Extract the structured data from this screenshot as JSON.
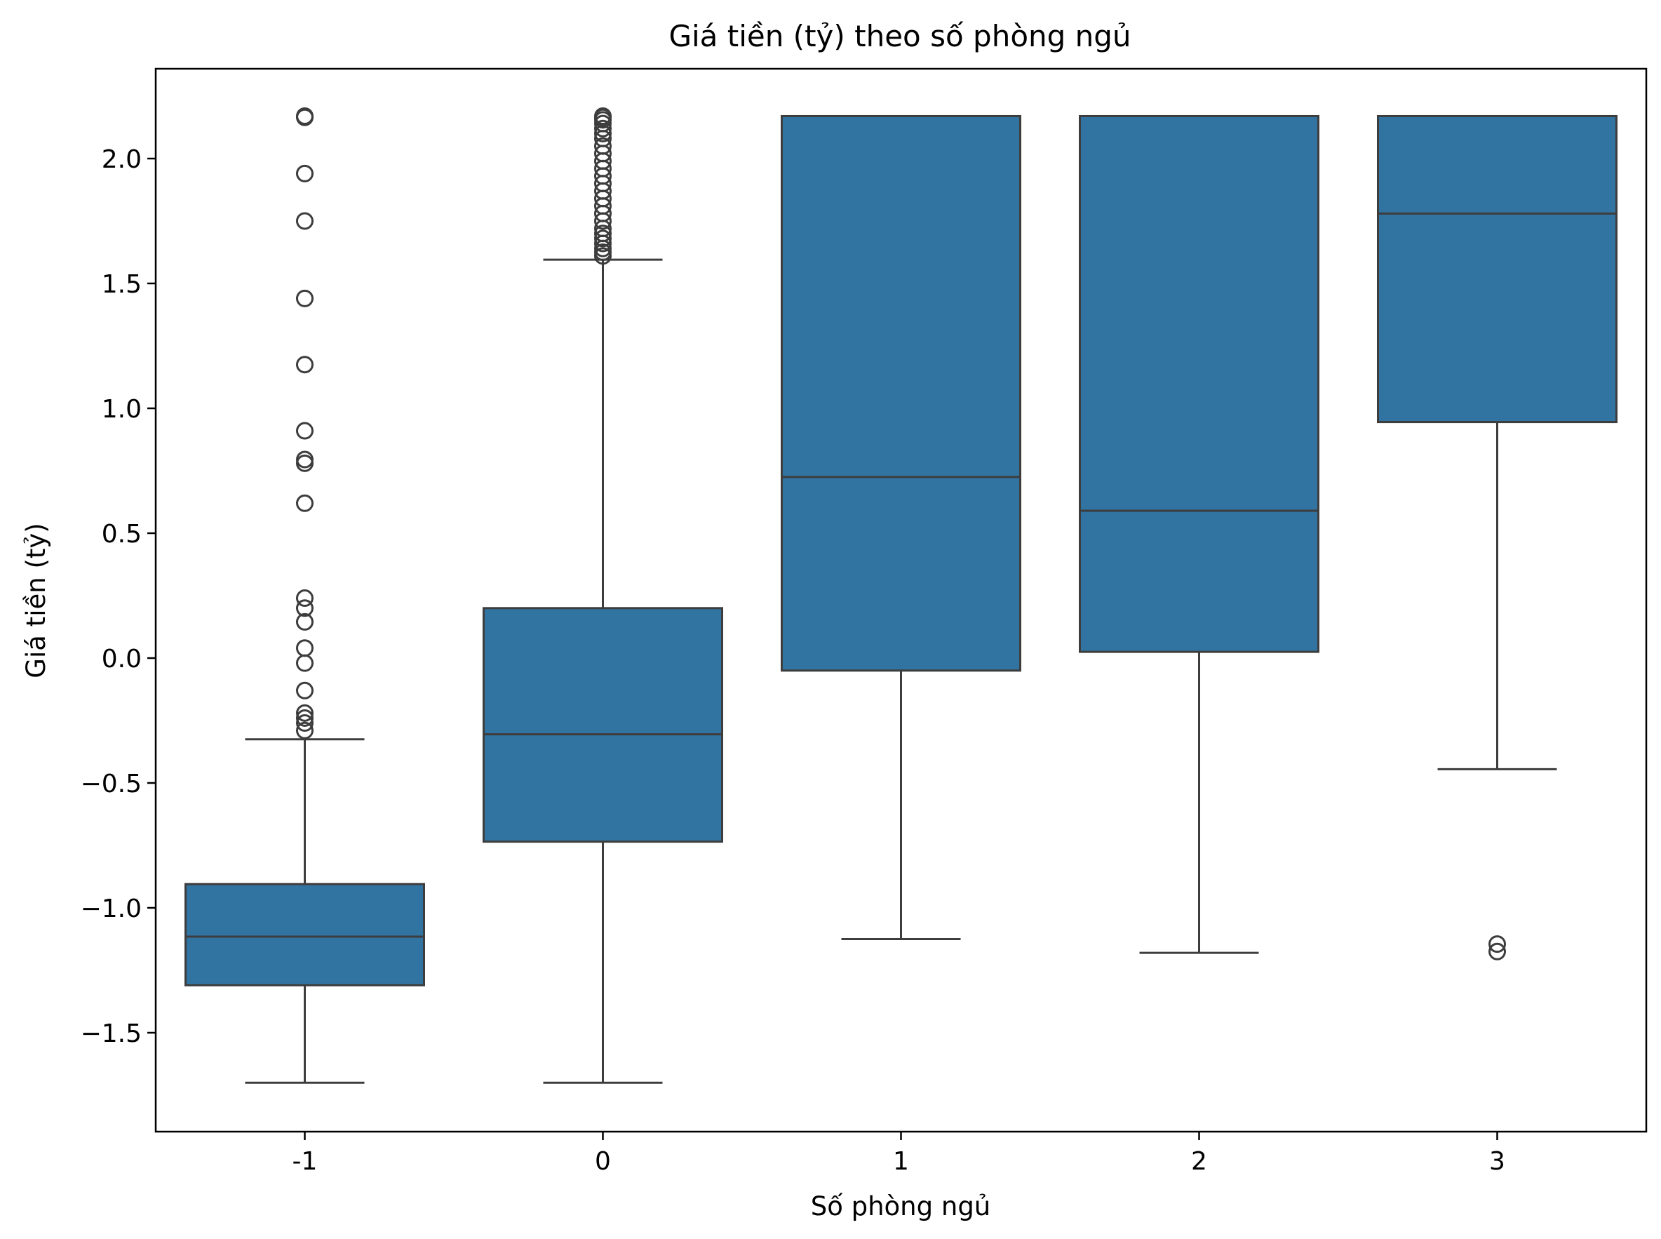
{
  "chart_data": {
    "type": "box",
    "title": "Giá tiền (tỷ) theo số phòng ngủ",
    "xlabel": "Số phòng ngủ",
    "ylabel": "Giá tiền (tỷ)",
    "categories": [
      "-1",
      "0",
      "1",
      "2",
      "3"
    ],
    "ylim": [
      -1.9,
      2.35
    ],
    "yticks": [
      -1.5,
      -1.0,
      -0.5,
      0.0,
      0.5,
      1.0,
      1.5,
      2.0
    ],
    "ytick_labels": [
      "−1.5",
      "−1.0",
      "−0.5",
      "0.0",
      "0.5",
      "1.0",
      "1.5",
      "2.0"
    ],
    "box_color": "#3274a1",
    "line_color": "#3d3d3d",
    "boxes": [
      {
        "category": "-1",
        "whisker_low": -1.7,
        "q1": -1.31,
        "median": -1.115,
        "q3": -0.905,
        "whisker_high": -0.325,
        "outliers": [
          2.17,
          2.165,
          1.94,
          1.75,
          1.44,
          1.175,
          0.91,
          0.795,
          0.78,
          0.62,
          0.24,
          0.2,
          0.145,
          0.04,
          -0.02,
          -0.13,
          -0.22,
          -0.24,
          -0.26,
          -0.29
        ]
      },
      {
        "category": "0",
        "whisker_low": -1.7,
        "q1": -0.735,
        "median": -0.305,
        "q3": 0.2,
        "whisker_high": 1.595,
        "outliers": [
          2.17,
          2.165,
          2.155,
          2.14,
          2.12,
          2.1,
          2.08,
          2.05,
          2.02,
          1.99,
          1.96,
          1.93,
          1.9,
          1.87,
          1.84,
          1.81,
          1.78,
          1.75,
          1.72,
          1.7,
          1.68,
          1.66,
          1.64,
          1.625,
          1.61
        ]
      },
      {
        "category": "1",
        "whisker_low": -1.125,
        "q1": -0.05,
        "median": 0.725,
        "q3": 2.17,
        "whisker_high": 2.17,
        "outliers": []
      },
      {
        "category": "2",
        "whisker_low": -1.18,
        "q1": 0.025,
        "median": 0.59,
        "q3": 2.17,
        "whisker_high": 2.17,
        "outliers": []
      },
      {
        "category": "3",
        "whisker_low": -0.445,
        "q1": 0.945,
        "median": 1.78,
        "q3": 2.17,
        "whisker_high": 2.17,
        "outliers": [
          -1.145,
          -1.175
        ]
      }
    ]
  }
}
